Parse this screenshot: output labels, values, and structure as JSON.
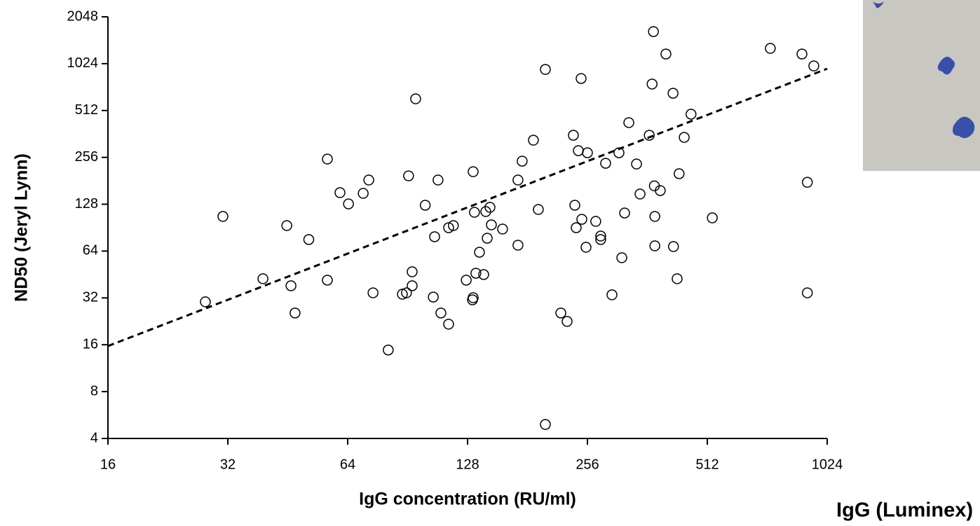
{
  "chart_data": {
    "type": "scatter",
    "xlabel": "IgG concentration (RU/ml)",
    "ylabel": "ND50 (Jeryl Lynn)",
    "side_label": "IgG (Luminex)",
    "log_base": 2,
    "xlim": [
      16,
      1024
    ],
    "ylim": [
      4,
      2048
    ],
    "xticks": [
      16,
      32,
      64,
      128,
      256,
      512,
      1024
    ],
    "yticks": [
      4,
      8,
      16,
      32,
      64,
      128,
      256,
      512,
      1024,
      2048
    ],
    "marker_color": "#000000",
    "x": [
      28.1,
      31.1,
      39.2,
      45.0,
      46.1,
      47.2,
      51.1,
      56.9,
      56.9,
      61.2,
      64.3,
      70.0,
      72.3,
      74.1,
      80.9,
      87.8,
      89.9,
      91.0,
      92.9,
      92.9,
      94.8,
      100.2,
      105.0,
      105.8,
      107.9,
      109.7,
      114.7,
      114.7,
      117.9,
      127.0,
      131.7,
      132.2,
      132.2,
      133.2,
      134.3,
      137.1,
      140.5,
      142.2,
      143.4,
      145.7,
      146.9,
      156.7,
      171.3,
      171.3,
      175.5,
      187.3,
      192.7,
      200.7,
      200.7,
      219.5,
      227.6,
      236,
      238,
      239.9,
      242.9,
      246.8,
      247.8,
      253.9,
      256,
      268.6,
      276.4,
      276.4,
      284.4,
      295.0,
      307.2,
      312.3,
      317.4,
      325.2,
      340,
      347,
      366,
      372,
      375,
      377,
      378,
      378,
      390,
      403,
      420,
      421,
      430,
      435,
      448,
      466,
      527,
      737,
      885,
      913,
      913,
      948
    ],
    "values": [
      30.2,
      106.8,
      42.5,
      93.3,
      38.3,
      25.6,
      75.9,
      249.7,
      41.6,
      151.9,
      128.6,
      150.3,
      183,
      34.5,
      14.8,
      33.8,
      34.5,
      194.7,
      47.1,
      38.3,
      608.8,
      126.1,
      32.4,
      79.1,
      183,
      25.6,
      90.4,
      21.7,
      93.3,
      41.6,
      31.1,
      32.1,
      207,
      113.6,
      46.1,
      62.9,
      45.2,
      114.8,
      77.4,
      122.2,
      94.3,
      88.6,
      69.8,
      183,
      242,
      330,
      118.4,
      940,
      4.92,
      25.6,
      22.6,
      355,
      126.1,
      90.4,
      282.7,
      822,
      102.4,
      67.7,
      274,
      99.3,
      79.9,
      75.9,
      234.6,
      33.5,
      274,
      58.0,
      112.4,
      428,
      232,
      148.8,
      355,
      757,
      1646,
      168,
      106.8,
      69.1,
      156.6,
      1181,
      661,
      68.4,
      42.5,
      201,
      344,
      485,
      104.6,
      1284,
      1181,
      177,
      34.5,
      990
    ],
    "trendline": {
      "x": [
        16,
        1024
      ],
      "values": [
        15.7,
        950
      ]
    }
  }
}
